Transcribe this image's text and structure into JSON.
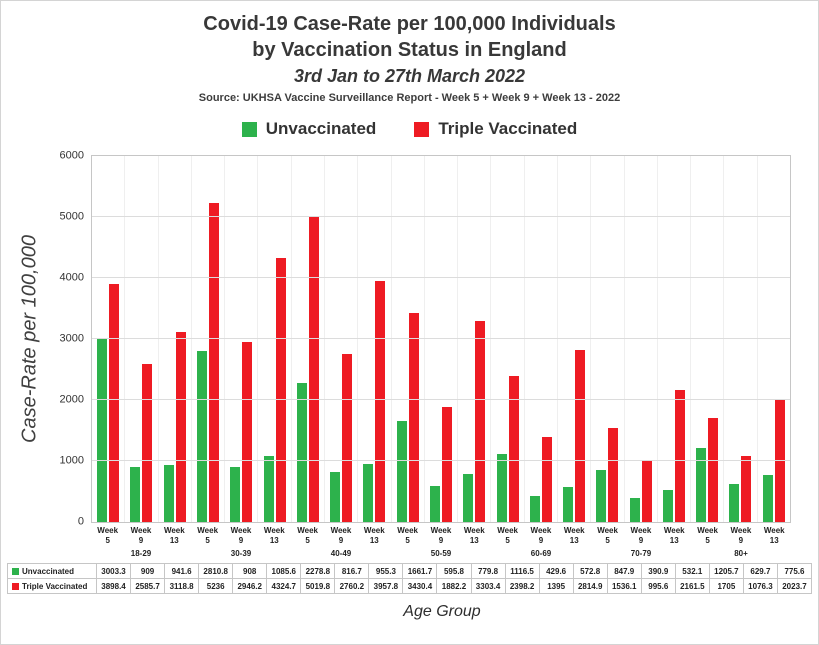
{
  "header": {
    "title_line1": "Covid-19 Case-Rate per 100,000 Individuals",
    "title_line2": "by Vaccination Status in England",
    "date_range": "3rd Jan to 27th March 2022",
    "source": "Source: UKHSA Vaccine Surveillance Report - Week 5 + Week 9 + Week 13 - 2022"
  },
  "chart_data": {
    "type": "bar",
    "title": "Covid-19 Case-Rate per 100,000 Individuals by Vaccination Status in England",
    "date_range": "3rd Jan to 27th March 2022",
    "xlabel": "Age Group",
    "ylabel": "Case-Rate per 100,000",
    "ylim": [
      0,
      6000
    ],
    "yticks": [
      0,
      1000,
      2000,
      3000,
      4000,
      5000,
      6000
    ],
    "grid": true,
    "legend_position": "top",
    "age_groups": [
      "18-29",
      "30-39",
      "40-49",
      "50-59",
      "60-69",
      "70-79",
      "80+"
    ],
    "week_labels": [
      "Week 5",
      "Week 9",
      "Week 13"
    ],
    "series": [
      {
        "name": "Unvaccinated",
        "color": "#2db24c",
        "values": [
          3003.3,
          909,
          941.6,
          2810.8,
          908,
          1085.6,
          2278.8,
          816.7,
          955.3,
          1661.7,
          595.8,
          779.8,
          1116.5,
          429.6,
          572.8,
          847.9,
          390.9,
          532.1,
          1205.7,
          629.7,
          775.6
        ]
      },
      {
        "name": "Triple Vaccinated",
        "color": "#ee1b23",
        "values": [
          3898.4,
          2585.7,
          3118.8,
          5236,
          2946.2,
          4324.7,
          5019.8,
          2760.2,
          3957.8,
          3430.4,
          1882.2,
          3303.4,
          2398.2,
          1395,
          2814.9,
          1536.1,
          995.6,
          2161.5,
          1705,
          1076.3,
          2023.7
        ]
      }
    ]
  }
}
